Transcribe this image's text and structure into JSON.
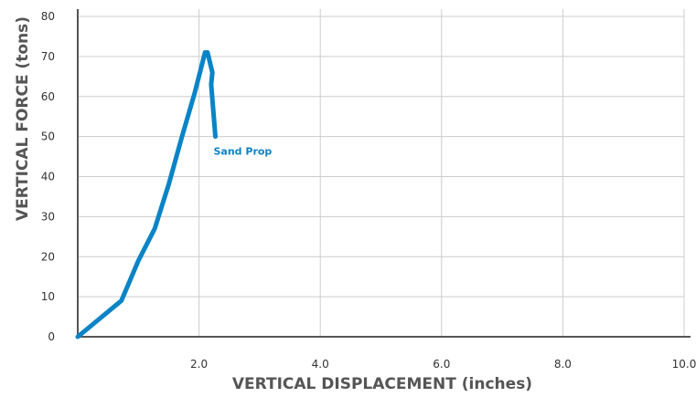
{
  "chart_data": {
    "type": "line",
    "title": "",
    "xlabel": "VERTICAL DISPLACEMENT (inches)",
    "ylabel": "VERTICAL FORCE (tons)",
    "xlim": [
      0,
      10
    ],
    "ylim": [
      0,
      80
    ],
    "x_ticks": [
      {
        "value": 2,
        "label": "2.0"
      },
      {
        "value": 4,
        "label": "4.0"
      },
      {
        "value": 6,
        "label": "6.0"
      },
      {
        "value": 8,
        "label": "8.0"
      },
      {
        "value": 10,
        "label": "10.0"
      }
    ],
    "y_ticks": [
      {
        "value": 0,
        "label": "0"
      },
      {
        "value": 10,
        "label": "10"
      },
      {
        "value": 20,
        "label": "20"
      },
      {
        "value": 30,
        "label": "30"
      },
      {
        "value": 40,
        "label": "40"
      },
      {
        "value": 50,
        "label": "50"
      },
      {
        "value": 60,
        "label": "60"
      },
      {
        "value": 70,
        "label": "70"
      },
      {
        "value": 80,
        "label": "80"
      }
    ],
    "grid": true,
    "series": [
      {
        "name": "Sand Prop",
        "color": "#0a84c6",
        "points": [
          {
            "x": 0.0,
            "y": 0
          },
          {
            "x": 0.72,
            "y": 9
          },
          {
            "x": 1.0,
            "y": 19
          },
          {
            "x": 1.27,
            "y": 27
          },
          {
            "x": 1.5,
            "y": 38
          },
          {
            "x": 1.72,
            "y": 50
          },
          {
            "x": 1.93,
            "y": 61
          },
          {
            "x": 2.1,
            "y": 71
          },
          {
            "x": 2.14,
            "y": 71
          },
          {
            "x": 2.22,
            "y": 66
          },
          {
            "x": 2.2,
            "y": 63
          },
          {
            "x": 2.27,
            "y": 50
          }
        ]
      }
    ]
  },
  "colors": {
    "axis": "#555555",
    "grid": "#cccccc",
    "series": "#0a84c6"
  }
}
